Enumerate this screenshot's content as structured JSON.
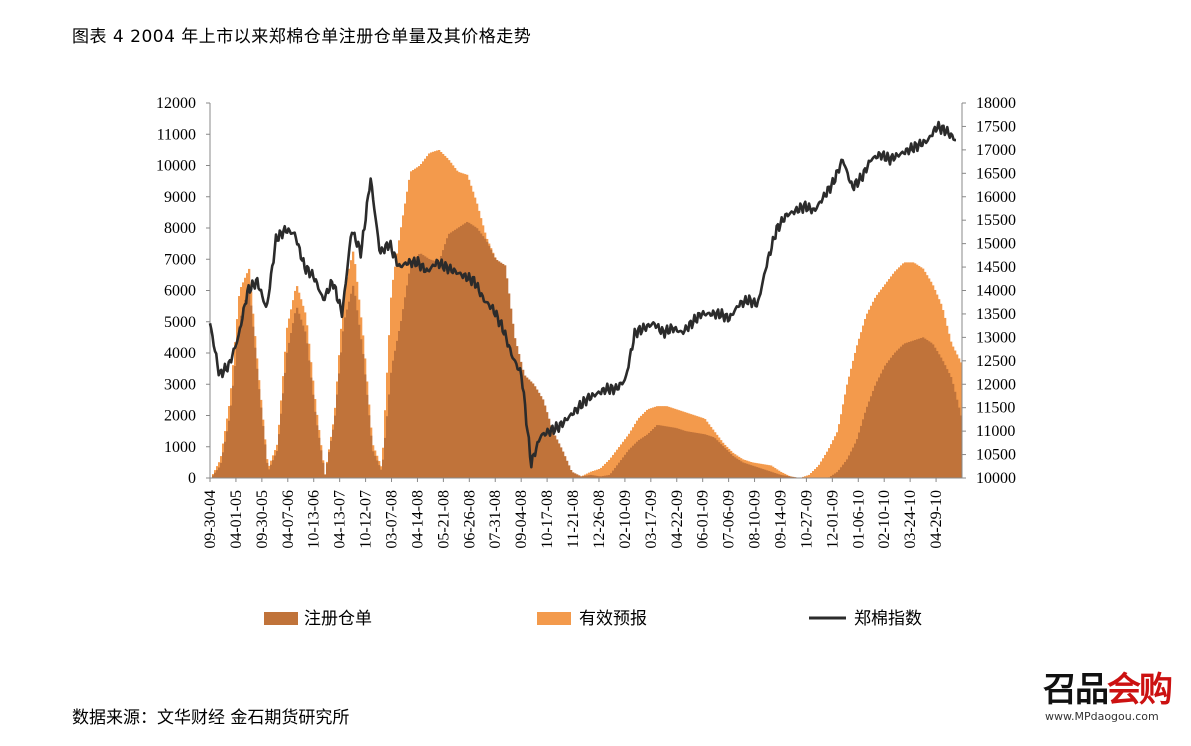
{
  "title": "图表 4 2004 年上市以来郑棉仓单注册仓单量及其价格走势",
  "source": "数据来源：文华财经  金石期货研究所",
  "logo": {
    "text_main": "召品",
    "text_accent": "会购",
    "url": "www.MPdaogou.com"
  },
  "colors": {
    "registered": "#C0733A",
    "forecast": "#F39A4C",
    "index": "#2B2B2B"
  },
  "chart_data": {
    "type": "bar+line",
    "grid": false,
    "legend_position": "bottom",
    "x_tick_labels": [
      "09-30-04",
      "04-01-05",
      "09-30-05",
      "04-07-06",
      "10-13-06",
      "04-13-07",
      "10-12-07",
      "03-07-08",
      "04-14-08",
      "05-21-08",
      "06-26-08",
      "07-31-08",
      "09-04-08",
      "10-17-08",
      "11-21-08",
      "12-26-08",
      "02-10-09",
      "03-17-09",
      "04-22-09",
      "06-01-09",
      "07-06-09",
      "08-10-09",
      "09-14-09",
      "10-27-09",
      "12-01-09",
      "01-06-10",
      "02-10-10",
      "03-24-10",
      "04-29-10"
    ],
    "y_left": {
      "min": 0,
      "max": 12000,
      "ticks": [
        0,
        1000,
        2000,
        3000,
        4000,
        5000,
        6000,
        7000,
        8000,
        9000,
        10000,
        11000,
        12000
      ]
    },
    "y_right": {
      "min": 10000,
      "max": 18000,
      "ticks": [
        10000,
        10500,
        11000,
        11500,
        12000,
        12500,
        13000,
        13500,
        14000,
        14500,
        15000,
        15500,
        16000,
        16500,
        17000,
        17500,
        18000
      ]
    },
    "series": [
      {
        "name": "注册仓单",
        "type": "bar",
        "axis": "left",
        "values": [
          0,
          400,
          2000,
          5000,
          6200,
          3000,
          200,
          900,
          4000,
          5500,
          4600,
          2000,
          100,
          1800,
          5000,
          6200,
          4000,
          900,
          200,
          3500,
          5000,
          6800,
          7200,
          7000,
          6900,
          7800,
          8000,
          8200,
          8000,
          7600,
          7000,
          6800,
          4500,
          3300,
          3000,
          2500,
          1500,
          900,
          200,
          50,
          100,
          50,
          100,
          500,
          900,
          1200,
          1400,
          1700,
          1650,
          1600,
          1500,
          1450,
          1400,
          1300,
          1000,
          700,
          500,
          400,
          300,
          200,
          100,
          50,
          0,
          0,
          0,
          0,
          200,
          600,
          1200,
          2200,
          3000,
          3600,
          4000,
          4300,
          4400,
          4500,
          4300,
          3800,
          3200,
          2000
        ]
      },
      {
        "name": "有效预报",
        "type": "bar",
        "axis": "left",
        "values": [
          0,
          600,
          2500,
          6000,
          6700,
          3300,
          300,
          1100,
          4800,
          6200,
          5200,
          2400,
          100,
          2000,
          6000,
          7300,
          4600,
          1100,
          300,
          6000,
          8000,
          9800,
          10000,
          10400,
          10500,
          10200,
          9800,
          9700,
          8800,
          7700,
          7000,
          4000,
          3300,
          3000,
          2300,
          1800,
          1000,
          300,
          100,
          50,
          200,
          300,
          600,
          1000,
          1400,
          1900,
          2200,
          2300,
          2300,
          2200,
          2100,
          2000,
          1900,
          1500,
          1100,
          800,
          600,
          500,
          450,
          400,
          200,
          50,
          0,
          100,
          400,
          900,
          1500,
          3000,
          4200,
          5200,
          5800,
          6200,
          6600,
          6900,
          6900,
          6700,
          6200,
          5500,
          4300,
          3700
        ]
      },
      {
        "name": "郑棉指数",
        "type": "line",
        "axis": "right",
        "values": [
          13300,
          12200,
          12400,
          13000,
          14000,
          14200,
          13600,
          15100,
          15300,
          15200,
          14500,
          14300,
          13800,
          14200,
          13500,
          15300,
          14800,
          16400,
          14800,
          15000,
          14500,
          14600,
          14600,
          14400,
          14600,
          14500,
          14400,
          14300,
          14200,
          13800,
          13600,
          13200,
          12600,
          12200,
          10300,
          10900,
          11000,
          11100,
          11300,
          11500,
          11700,
          11800,
          11900,
          11900,
          12100,
          13100,
          13200,
          13300,
          13100,
          13200,
          13100,
          13300,
          13500,
          13500,
          13500,
          13400,
          13700,
          13800,
          13700,
          14600,
          15300,
          15600,
          15700,
          15800,
          15700,
          16000,
          16300,
          16800,
          16200,
          16400,
          16800,
          16900,
          16800,
          16900,
          17000,
          17100,
          17200,
          17500,
          17400,
          17200
        ]
      }
    ]
  }
}
